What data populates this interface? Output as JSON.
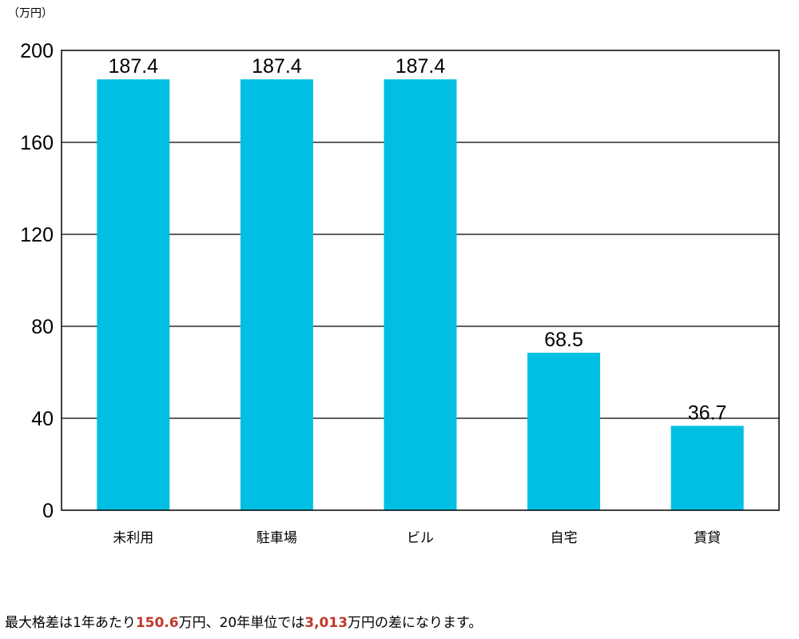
{
  "chart_data": {
    "type": "bar",
    "unit_label": "（万円）",
    "categories": [
      "未利用",
      "駐車場",
      "ビル",
      "自宅",
      "賃貸"
    ],
    "values": [
      187.4,
      187.4,
      187.4,
      68.5,
      36.7
    ],
    "data_labels": [
      "187.4",
      "187.4",
      "187.4",
      "68.5",
      "36.7"
    ],
    "ylim": [
      0,
      200
    ],
    "yticks": [
      0,
      40,
      80,
      120,
      160,
      200
    ],
    "grid": true,
    "bar_color": "#00BFE3"
  },
  "caption": {
    "part1": "最大格差は1年あたり",
    "highlight1": "150.6",
    "part2": "万円、20年単位では",
    "highlight2": "3,013",
    "part3": "万円の差になります。",
    "highlight_color": "#C0392B"
  }
}
